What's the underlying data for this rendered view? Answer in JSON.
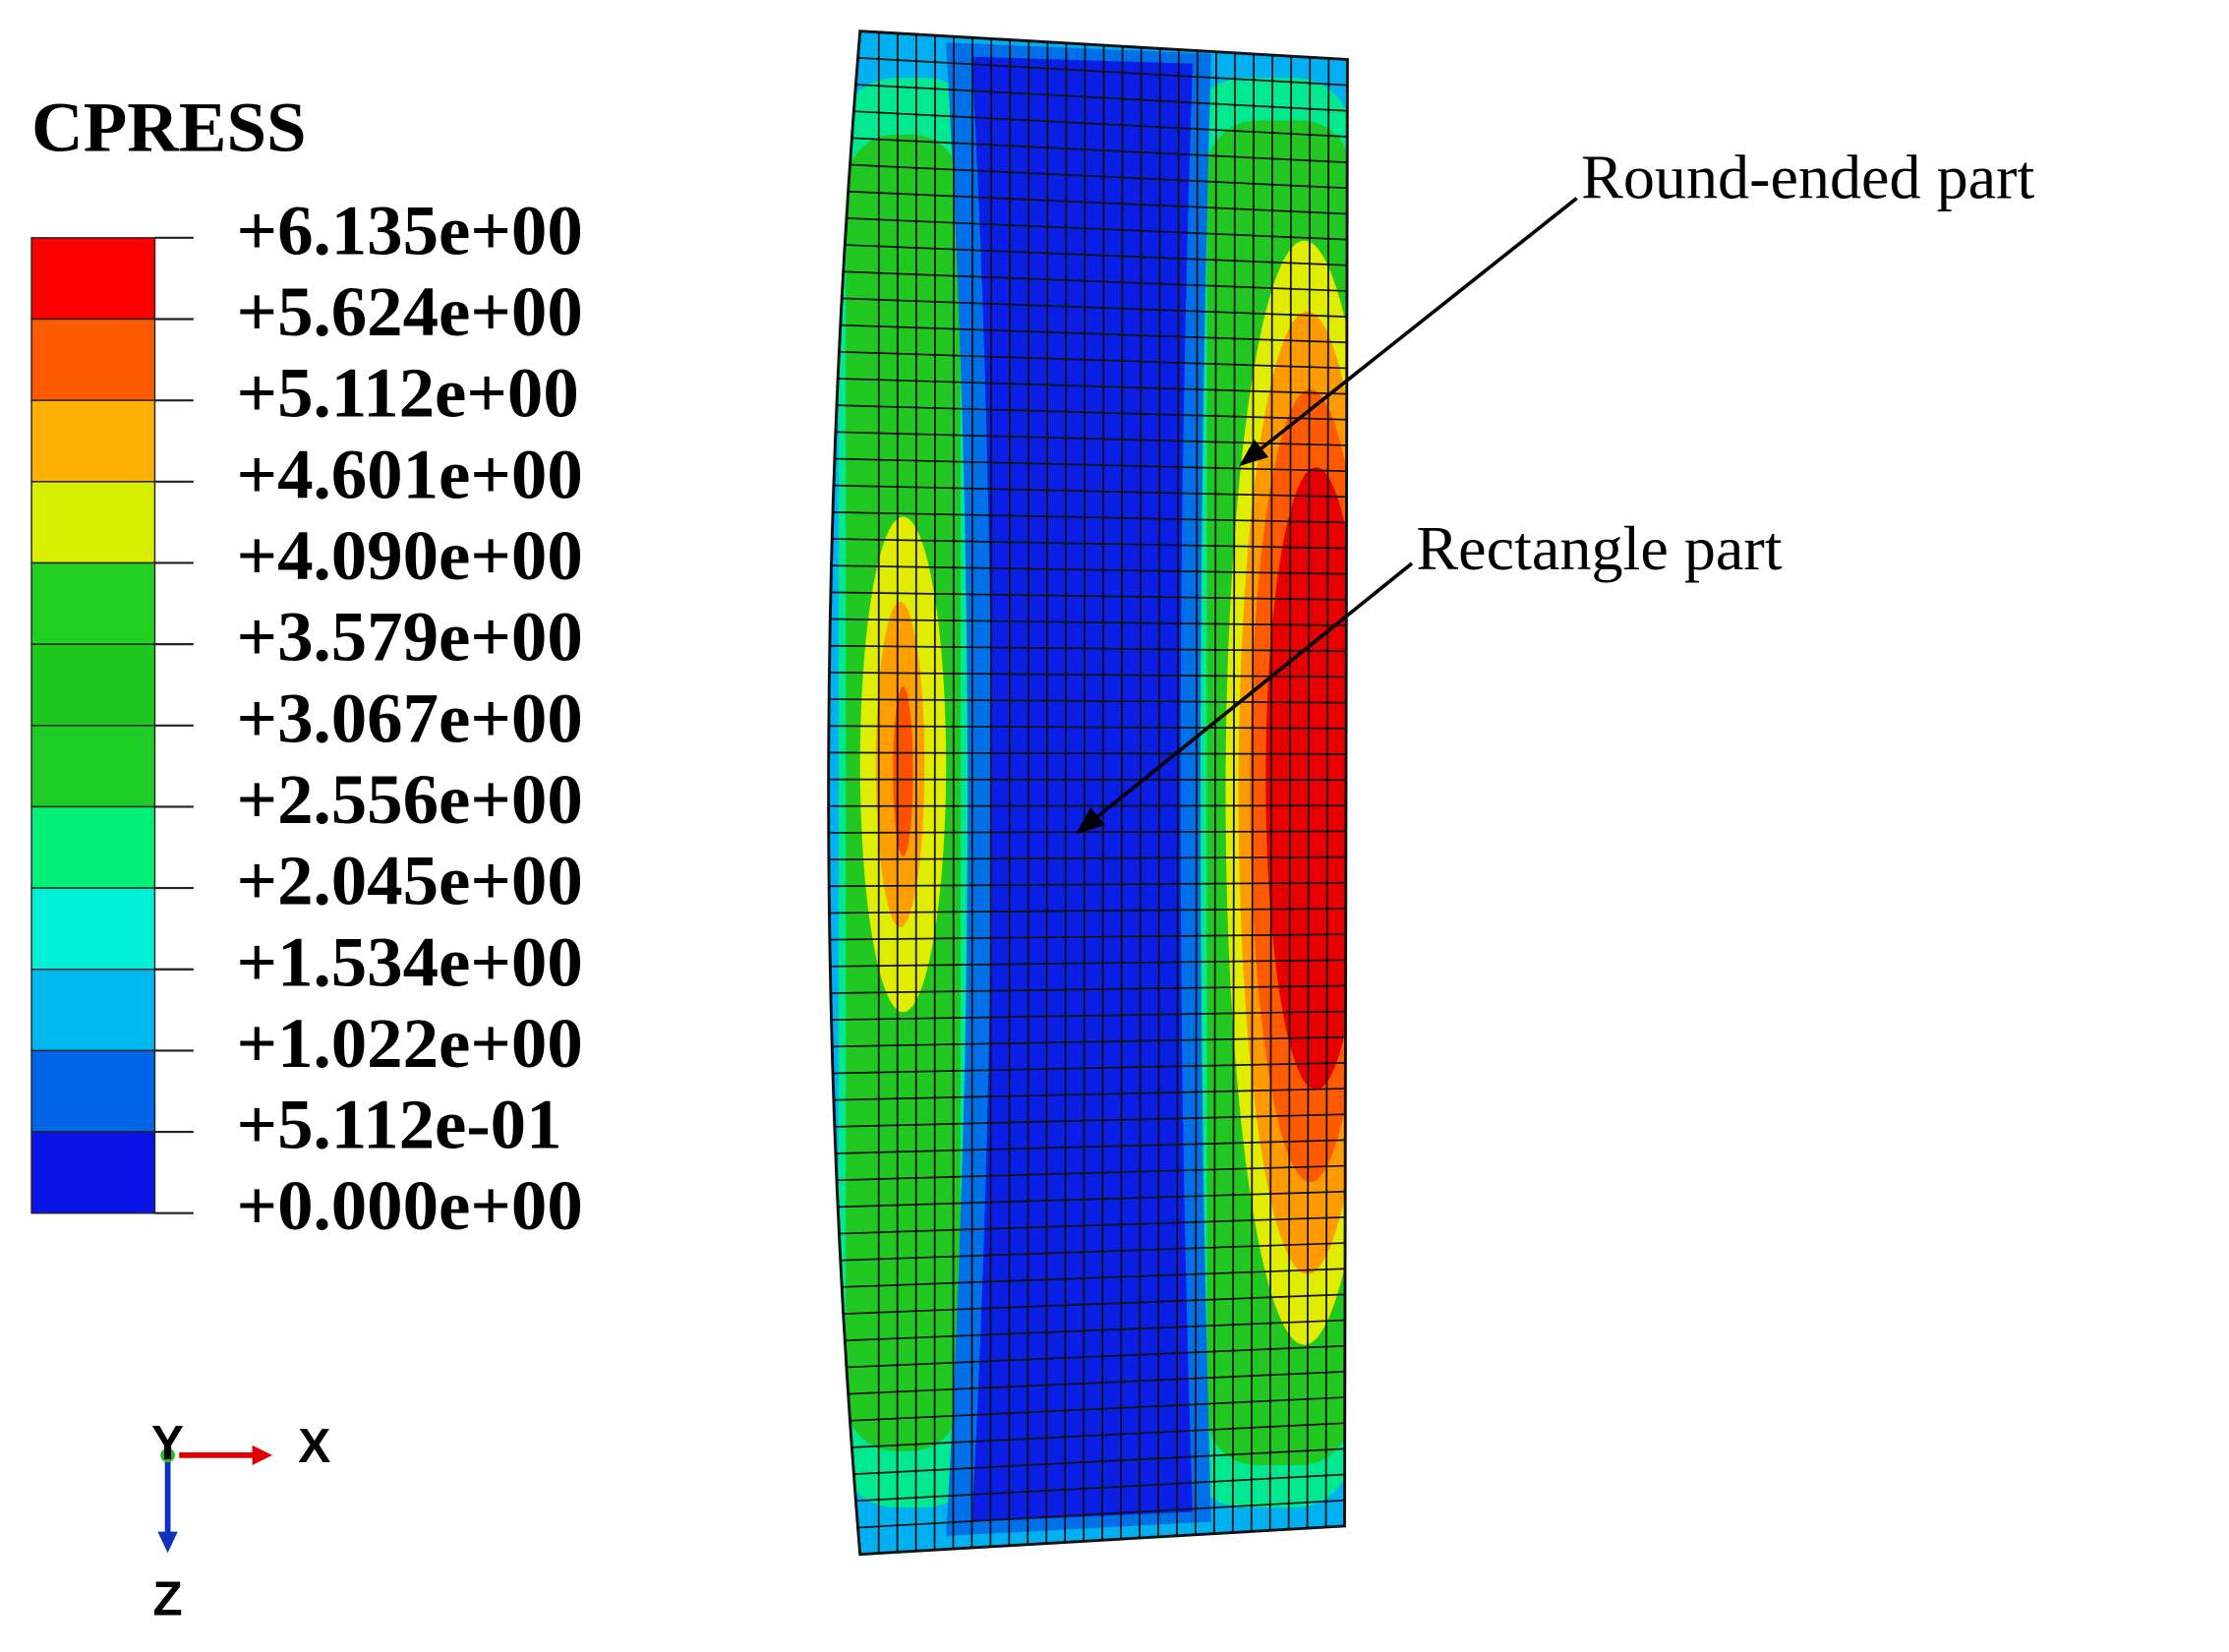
{
  "legend": {
    "title": "CPRESS",
    "labels": [
      "+6.135e+00",
      "+5.624e+00",
      "+5.112e+00",
      "+4.601e+00",
      "+4.090e+00",
      "+3.579e+00",
      "+3.067e+00",
      "+2.556e+00",
      "+2.045e+00",
      "+1.534e+00",
      "+1.022e+00",
      "+5.112e-01",
      "+0.000e+00"
    ],
    "colors": [
      "#ff0000",
      "#ff5a00",
      "#ffb000",
      "#d8f000",
      "#22d022",
      "#1ec81e",
      "#1ecc28",
      "#00f078",
      "#00f0d8",
      "#00b8f0",
      "#0064e8",
      "#0a14e6"
    ]
  },
  "annotations": [
    "Round-ended part",
    "Rectangle part"
  ],
  "axes": {
    "y": "Y",
    "x": "X",
    "z": "Z"
  }
}
